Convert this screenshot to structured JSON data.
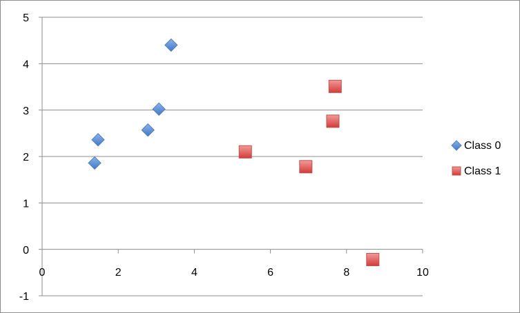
{
  "chart_data": {
    "type": "scatter",
    "series": [
      {
        "name": "Class 0",
        "color": "#4f81bd",
        "marker": "diamond",
        "x": [
          1.38,
          1.47,
          2.78,
          3.07,
          3.39
        ],
        "y": [
          1.86,
          2.36,
          2.57,
          3.02,
          4.4
        ]
      },
      {
        "name": "Class 1",
        "color": "#c0504d",
        "marker": "square",
        "x": [
          5.34,
          6.93,
          7.64,
          7.7,
          8.69
        ],
        "y": [
          2.1,
          1.78,
          2.76,
          3.51,
          -0.22
        ]
      }
    ],
    "xlim": [
      0,
      10
    ],
    "xticks": [
      0,
      2,
      4,
      6,
      8,
      10
    ],
    "ylim": [
      -1,
      5
    ],
    "yticks": [
      -1,
      0,
      1,
      2,
      3,
      4,
      5
    ],
    "grid": true,
    "legend": "right"
  }
}
